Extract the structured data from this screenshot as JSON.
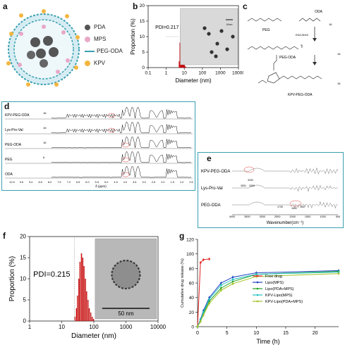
{
  "panel_labels": {
    "a": "a",
    "b": "b",
    "c": "c",
    "d": "d",
    "e": "e",
    "f": "f",
    "g": "g"
  },
  "panel_a": {
    "legend": [
      {
        "label": "PDA",
        "color": "#555555",
        "icon": "gray-sphere-icon"
      },
      {
        "label": "MPS",
        "color": "#e8a8c8",
        "icon": "pink-sphere-icon"
      },
      {
        "label": "PEG-ODA",
        "color": "#3aa0b0",
        "icon": "squiggle-chain-icon"
      },
      {
        "label": "KPV",
        "color": "#f2b640",
        "icon": "yellow-sphere-icon"
      }
    ]
  },
  "panel_b": {
    "pdi_text": "PDI=0.217",
    "scale_text": "10nm",
    "chart_data": {
      "type": "bar",
      "xlabel": "Diameter (nm)",
      "ylabel": "Proportion (%)",
      "x_scale": "log",
      "xlim": [
        0.1,
        10000
      ],
      "ylim": [
        0,
        20
      ],
      "xticks": [
        "0.1",
        "1",
        "10",
        "100",
        "1000",
        "10000"
      ],
      "yticks": [
        "0",
        "5",
        "10",
        "15",
        "20"
      ],
      "series": [
        {
          "color": "#dd1111",
          "x": [
            5.0,
            5.5,
            6.0,
            6.5,
            7.0,
            7.5,
            8.0,
            8.5,
            9.0,
            9.5,
            10,
            11,
            12
          ],
          "values": [
            2,
            8,
            14,
            17,
            15,
            11,
            7,
            4,
            2,
            1,
            0.5,
            0.3,
            0.1
          ]
        }
      ]
    }
  },
  "panel_c": {
    "labels": {
      "peg": "PEG",
      "oda": "ODA",
      "reagent": "EDC/NHS",
      "peg_oda": "PEG-ODA",
      "kpv_peg_oda": "KPV-PEG-ODA",
      "sub16a": "16",
      "sub16b": "16",
      "sub16c": "16"
    }
  },
  "panel_d": {
    "traces": [
      "KPV-PEG-ODA",
      "Lys-Pro-Val",
      "PEG-ODA",
      "PEG",
      "ODA"
    ],
    "subscripts": [
      "16",
      "16",
      "16",
      "6"
    ],
    "xlabel": "δ (ppm)",
    "xticks": [
      "10.5",
      "9.5",
      "9.0",
      "8.5",
      "8.0",
      "7.5",
      "7.0",
      "6.5",
      "6.0",
      "5.5",
      "5.0",
      "4.5",
      "4.0",
      "3.5",
      "3.0",
      "2.5",
      "2.0",
      "1.5",
      "1.0",
      "0.5"
    ]
  },
  "panel_e": {
    "traces": [
      "KPV-PEG-ODA",
      "Lys-Pro-Val",
      "PEG-ODA"
    ],
    "annotations": [
      "3292",
      "3051",
      "3300",
      "1739",
      "1642",
      "1547"
    ],
    "xlabel": "Wavenumber(cm⁻¹)",
    "xticks": [
      "4000",
      "3500",
      "3000",
      "2500",
      "2000",
      "1500",
      "1000",
      "500"
    ]
  },
  "panel_f": {
    "pdi_text": "PDI=0.215",
    "scale_text": "50 nm",
    "chart_data": {
      "type": "bar",
      "xlabel": "Diameter (nm)",
      "ylabel": "Proportion (%)",
      "x_scale": "log",
      "xlim": [
        1,
        10000
      ],
      "ylim": [
        0,
        20
      ],
      "xticks": [
        "1",
        "10",
        "100",
        "1000",
        "10000"
      ],
      "yticks": [
        "0",
        "5",
        "10",
        "15",
        "20"
      ],
      "series": [
        {
          "color": "#dd1111",
          "x": [
            25,
            28,
            30,
            33,
            36,
            40,
            44,
            48,
            53,
            58,
            64,
            70,
            78,
            86,
            95
          ],
          "values": [
            1,
            3,
            6,
            10,
            14,
            16,
            15,
            13,
            10,
            7,
            5,
            3,
            2,
            1,
            0.5
          ]
        }
      ]
    }
  },
  "panel_g": {
    "chart_data": {
      "type": "line",
      "xlabel": "Time (h)",
      "ylabel": "Cumulative drug release (%)",
      "xlim": [
        0,
        24
      ],
      "ylim": [
        0,
        120
      ],
      "xticks": [
        "0",
        "5",
        "10",
        "15",
        "20"
      ],
      "yticks": [
        "0",
        "20",
        "40",
        "60",
        "80",
        "100",
        "120"
      ],
      "x": [
        0,
        0.5,
        1,
        2,
        4,
        6,
        10,
        24
      ],
      "series": [
        {
          "name": "Free drug",
          "color": "#e02020",
          "x": [
            0,
            0.5,
            1,
            2
          ],
          "values": [
            0,
            88,
            92,
            93
          ]
        },
        {
          "name": "Lipo(MPS)",
          "color": "#2040c0",
          "values": [
            0,
            10,
            22,
            40,
            60,
            68,
            74,
            77
          ]
        },
        {
          "name": "Lipo(PDA+MPS)",
          "color": "#20a020",
          "values": [
            0,
            8,
            18,
            35,
            53,
            62,
            72,
            76
          ]
        },
        {
          "name": "KPV-Lipo(MPS)",
          "color": "#20c0c0",
          "values": [
            0,
            9,
            20,
            38,
            57,
            65,
            72,
            75
          ]
        },
        {
          "name": "KPV-Lipo(PDA+MPS)",
          "color": "#a0c020",
          "values": [
            0,
            7,
            16,
            32,
            50,
            59,
            69,
            73
          ]
        }
      ]
    }
  }
}
